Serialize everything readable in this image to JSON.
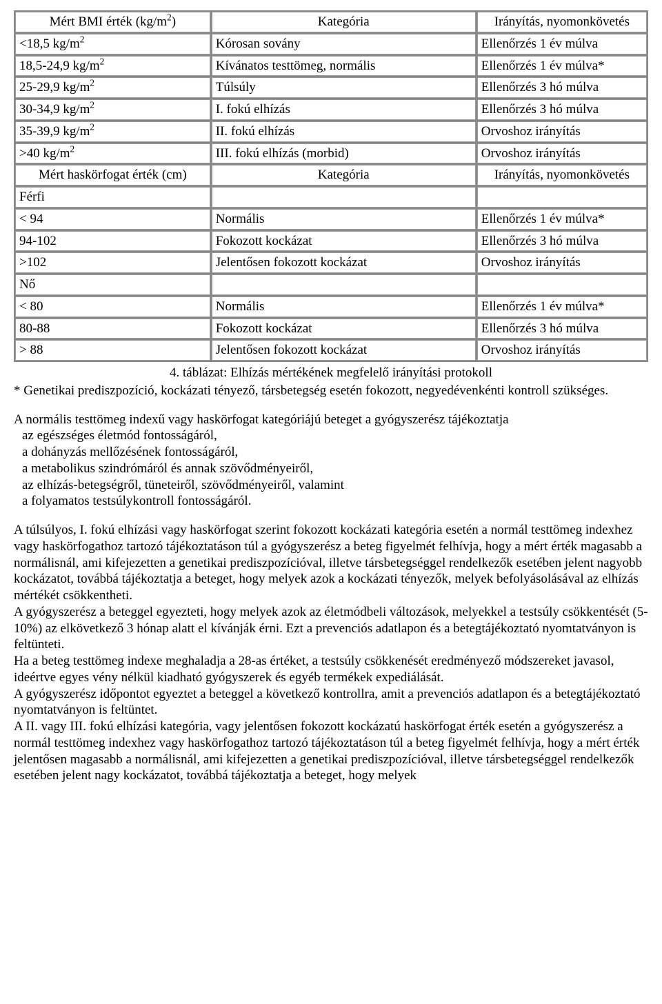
{
  "table": {
    "header1": {
      "c1_pre": "Mért BMI érték (kg/m",
      "c1_sup": "2",
      "c1_post": ")",
      "c2": "Kategória",
      "c3": "Irányítás, nyomonkövetés"
    },
    "rows1": [
      {
        "c1_pre": "<18,5 kg/m",
        "c1_sup": "2",
        "c1_post": "",
        "c2": "Kórosan sovány",
        "c3": "Ellenőrzés 1 év múlva"
      },
      {
        "c1_pre": "18,5-24,9 kg/m",
        "c1_sup": "2",
        "c1_post": "",
        "c2": "Kívánatos testtömeg, normális",
        "c3": "Ellenőrzés 1 év múlva*"
      },
      {
        "c1_pre": "25-29,9 kg/m",
        "c1_sup": "2",
        "c1_post": "",
        "c2": "Túlsúly",
        "c3": "Ellenőrzés 3 hó múlva"
      },
      {
        "c1_pre": "30-34,9 kg/m",
        "c1_sup": "2",
        "c1_post": "",
        "c2": "I. fokú elhízás",
        "c3": "Ellenőrzés 3 hó múlva"
      },
      {
        "c1_pre": "35-39,9 kg/m",
        "c1_sup": "2",
        "c1_post": "",
        "c2": "II. fokú elhízás",
        "c3": "Orvoshoz irányítás"
      },
      {
        "c1_pre": ">40 kg/m",
        "c1_sup": "2",
        "c1_post": "",
        "c2": "III. fokú elhízás (morbid)",
        "c3": "Orvoshoz irányítás"
      }
    ],
    "header2": {
      "c1": "Mért haskörfogat érték (cm)",
      "c2": "Kategória",
      "c3": "Irányítás, nyomonkövetés"
    },
    "rows2": [
      {
        "c1": "Férfi",
        "c2": "",
        "c3": ""
      },
      {
        "c1": "< 94",
        "c2": "Normális",
        "c3": "Ellenőrzés 1 év múlva*"
      },
      {
        "c1": "94-102",
        "c2": "Fokozott kockázat",
        "c3": "Ellenőrzés 3 hó múlva"
      },
      {
        "c1": ">102",
        "c2": "Jelentősen fokozott kockázat",
        "c3": "Orvoshoz irányítás"
      },
      {
        "c1": "Nő",
        "c2": "",
        "c3": ""
      },
      {
        "c1": "< 80",
        "c2": "Normális",
        "c3": "Ellenőrzés 1 év múlva*"
      },
      {
        "c1": "80-88",
        "c2": "Fokozott kockázat",
        "c3": "Ellenőrzés 3 hó múlva"
      },
      {
        "c1": "> 88",
        "c2": "Jelentősen fokozott kockázat",
        "c3": "Orvoshoz irányítás"
      }
    ]
  },
  "caption": "4. táblázat: Elhízás mértékének megfelelő irányítási protokoll",
  "footnote": "* Genetikai prediszpozíció, kockázati tényező, társbetegség esetén fokozott, negyedévenkénti kontroll szükséges.",
  "p2_intro": "A normális testtömeg indexű vagy haskörfogat kategóriájú beteget a gyógyszerész tájékoztatja",
  "p2_items": [
    "az egészséges életmód fontosságáról,",
    "a dohányzás mellőzésének fontosságáról,",
    "a metabolikus szindrómáról és annak szövődményeiről,",
    "az elhízás-betegségről, tüneteiről, szövődményeiről, valamint",
    "a folyamatos testsúlykontroll fontosságáról."
  ],
  "p3": "A túlsúlyos, I. fokú elhízási vagy haskörfogat szerint fokozott kockázati kategória esetén a normál testtömeg indexhez vagy haskörfogathoz tartozó tájékoztatáson túl a gyógyszerész a beteg figyelmét felhívja, hogy a mért érték magasabb a normálisnál, ami kifejezetten a genetikai prediszpozícióval, illetve társbetegséggel rendelkezők esetében jelent nagyobb kockázatot, továbbá tájékoztatja a beteget, hogy melyek azok a kockázati tényezők, melyek befolyásolásával az elhízás mértékét csökkentheti.",
  "p4": "A gyógyszerész a beteggel egyezteti, hogy melyek azok az életmódbeli változások, melyekkel a testsúly csökkentését (5-10%) az elkövetkező 3 hónap alatt el kívánják érni. Ezt a prevenciós adatlapon és a betegtájékoztató nyomtatványon is feltünteti.",
  "p5": "Ha a beteg testtömeg indexe meghaladja a 28-as értéket, a testsúly csökkenését eredményező módszereket javasol, ideértve egyes vény nélkül kiadható gyógyszerek és egyéb termékek expediálását.",
  "p6": "A gyógyszerész időpontot egyeztet a beteggel a következő kontrollra, amit a prevenciós adatlapon és a betegtájékoztató nyomtatványon is feltüntet.",
  "p7": "A II. vagy III. fokú elhízási kategória, vagy jelentősen fokozott kockázatú haskörfogat érték esetén a gyógyszerész a normál testtömeg indexhez vagy haskörfogathoz tartozó tájékoztatáson túl a beteg figyelmét felhívja, hogy a mért érték jelentősen magasabb a normálisnál, ami kifejezetten a genetikai prediszpozícióval, illetve társbetegséggel rendelkezők esetében jelent nagy kockázatot, továbbá tájékoztatja a beteget, hogy melyek"
}
